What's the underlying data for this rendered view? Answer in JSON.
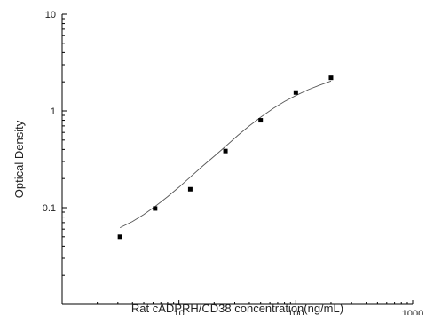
{
  "chart_data": {
    "type": "scatter",
    "title": "",
    "xlabel": "Rat cADPRH/CD38 concentration(ng/mL)",
    "ylabel": "Optical Density",
    "x_scale": "log",
    "y_scale": "log",
    "xlim": [
      1,
      1000
    ],
    "ylim": [
      0.01,
      10
    ],
    "x_tick_labels": [
      "10",
      "100",
      "1000"
    ],
    "y_tick_labels": [
      "0.1",
      "1",
      "10"
    ],
    "grid": false,
    "legend": "none",
    "series": [
      {
        "marker": "square",
        "x": [
          3.125,
          6.25,
          12.5,
          25,
          50,
          100,
          200
        ],
        "y": [
          0.05,
          0.098,
          0.155,
          0.385,
          0.8,
          1.55,
          2.2
        ]
      }
    ],
    "fit_curve": {
      "type": "4PL",
      "x": [
        3.125,
        4,
        5,
        6.25,
        8,
        10,
        12.5,
        16,
        20,
        25,
        32,
        40,
        50,
        64,
        80,
        100,
        128,
        160,
        200
      ],
      "y": [
        0.062,
        0.072,
        0.085,
        0.103,
        0.13,
        0.163,
        0.207,
        0.27,
        0.34,
        0.43,
        0.56,
        0.7,
        0.86,
        1.06,
        1.25,
        1.44,
        1.66,
        1.85,
        2.04
      ]
    },
    "colors": {
      "marker": "#000000",
      "curve": "#555555",
      "axis": "#000000"
    }
  }
}
